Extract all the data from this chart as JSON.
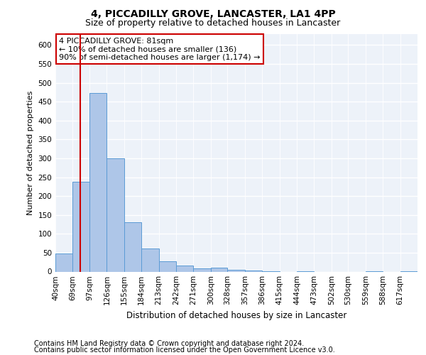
{
  "title": "4, PICCADILLY GROVE, LANCASTER, LA1 4PP",
  "subtitle": "Size of property relative to detached houses in Lancaster",
  "xlabel": "Distribution of detached houses by size in Lancaster",
  "ylabel": "Number of detached properties",
  "footnote1": "Contains HM Land Registry data © Crown copyright and database right 2024.",
  "footnote2": "Contains public sector information licensed under the Open Government Licence v3.0.",
  "annotation_line1": "4 PICCADILLY GROVE: 81sqm",
  "annotation_line2": "← 10% of detached houses are smaller (136)",
  "annotation_line3": "90% of semi-detached houses are larger (1,174) →",
  "bar_labels": [
    "40sqm",
    "69sqm",
    "97sqm",
    "126sqm",
    "155sqm",
    "184sqm",
    "213sqm",
    "242sqm",
    "271sqm",
    "300sqm",
    "328sqm",
    "357sqm",
    "386sqm",
    "415sqm",
    "444sqm",
    "473sqm",
    "502sqm",
    "530sqm",
    "559sqm",
    "588sqm",
    "617sqm"
  ],
  "bar_values": [
    48,
    237,
    473,
    300,
    130,
    62,
    28,
    16,
    9,
    10,
    5,
    3,
    1,
    0,
    1,
    0,
    0,
    0,
    1,
    0,
    1
  ],
  "bar_color": "#aec6e8",
  "bar_edge_color": "#5b9bd5",
  "vline_x": 81,
  "vline_color": "#cc0000",
  "ylim": [
    0,
    630
  ],
  "yticks": [
    0,
    50,
    100,
    150,
    200,
    250,
    300,
    350,
    400,
    450,
    500,
    550,
    600
  ],
  "bg_color": "#edf2f9",
  "grid_color": "#ffffff",
  "annotation_box_color": "#cc0000",
  "title_fontsize": 10,
  "subtitle_fontsize": 9,
  "ylabel_fontsize": 8,
  "xlabel_fontsize": 8.5,
  "footnote_fontsize": 7,
  "tick_fontsize": 7.5,
  "annot_fontsize": 8
}
